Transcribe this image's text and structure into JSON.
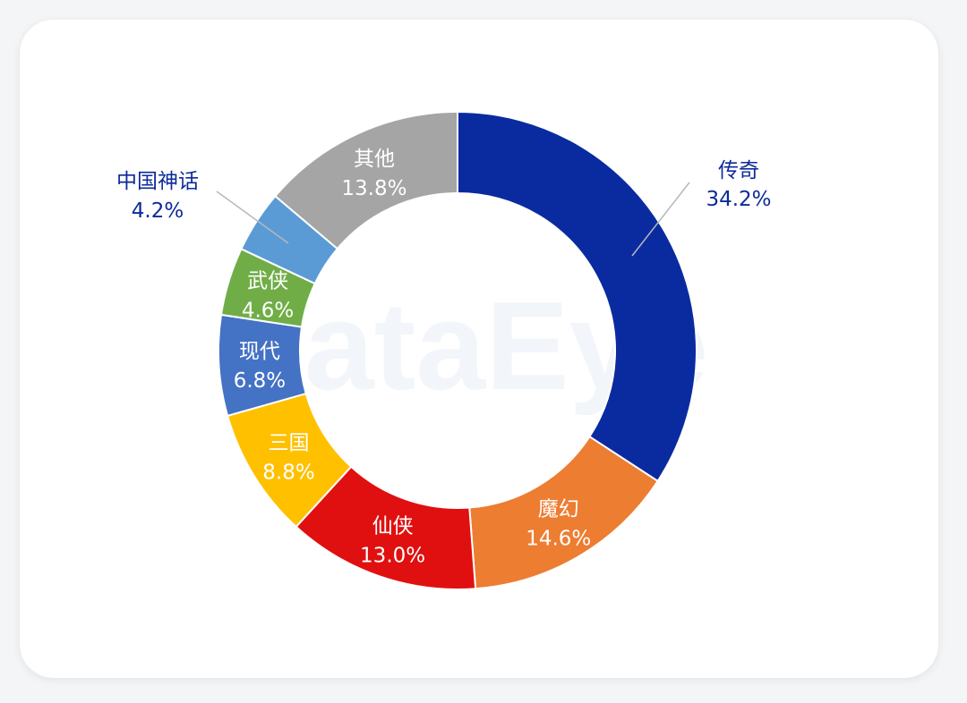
{
  "watermark": "DataEye",
  "colors": {
    "dark_label": "#0d2a9a",
    "light_label": "#ffffff",
    "leader": "#b8b8b8"
  },
  "chart_data": {
    "type": "pie",
    "variant": "donut",
    "title": "",
    "slices": [
      {
        "label": "传奇",
        "value": 34.2,
        "value_text": "34.2%",
        "color": "#0a2ba0",
        "label_style": "outside"
      },
      {
        "label": "魔幻",
        "value": 14.6,
        "value_text": "14.6%",
        "color": "#ed7d31",
        "label_style": "inside"
      },
      {
        "label": "仙侠",
        "value": 13.0,
        "value_text": "13.0%",
        "color": "#e01010",
        "label_style": "inside"
      },
      {
        "label": "三国",
        "value": 8.8,
        "value_text": "8.8%",
        "color": "#ffc000",
        "label_style": "inside"
      },
      {
        "label": "现代",
        "value": 6.8,
        "value_text": "6.8%",
        "color": "#4472c4",
        "label_style": "inside"
      },
      {
        "label": "武侠",
        "value": 4.6,
        "value_text": "4.6%",
        "color": "#70ad47",
        "label_style": "inside"
      },
      {
        "label": "中国神话",
        "value": 4.2,
        "value_text": "4.2%",
        "color": "#5b9bd5",
        "label_style": "outside"
      },
      {
        "label": "其他",
        "value": 13.8,
        "value_text": "13.8%",
        "color": "#a5a5a5",
        "label_style": "inside"
      }
    ]
  }
}
